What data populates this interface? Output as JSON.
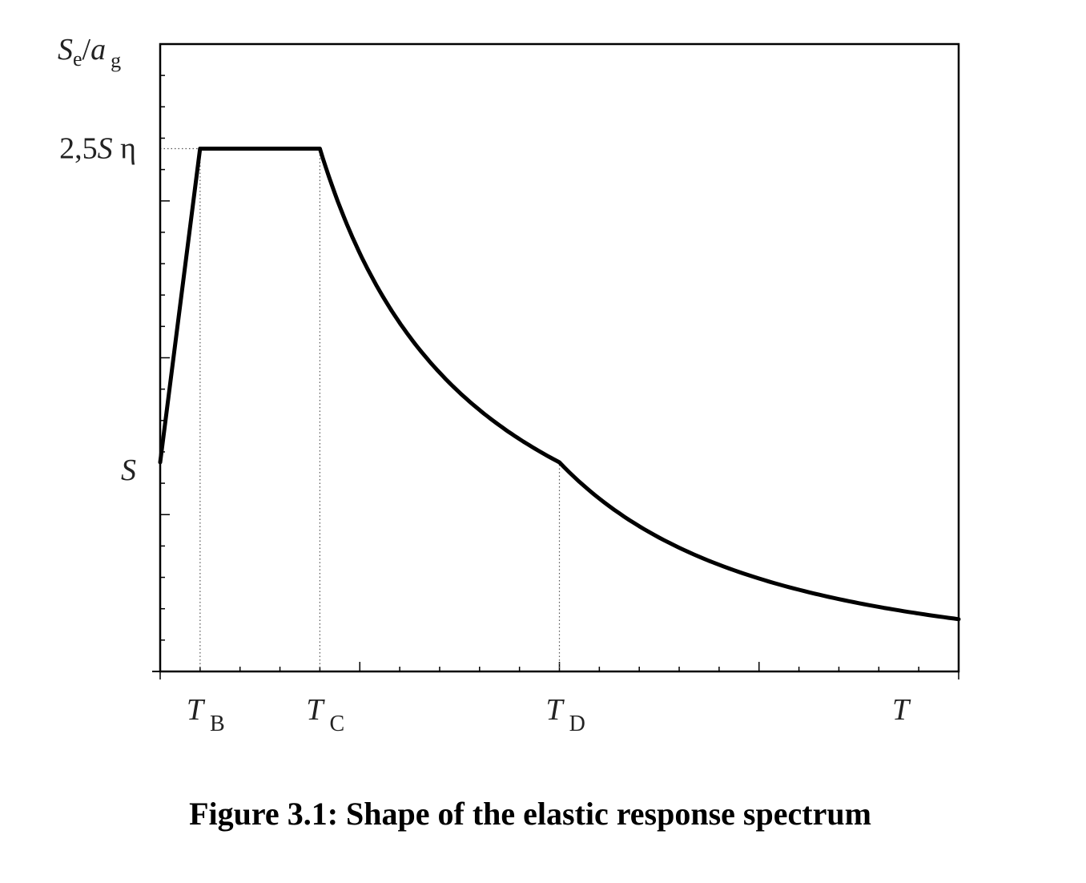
{
  "caption": "Figure 3.1: Shape of the elastic response spectrum",
  "chart_data": {
    "type": "line",
    "title": "",
    "xlabel": "T",
    "ylabel": {
      "main": "S",
      "sub1": "e",
      "sep": "/",
      "main2": "a",
      "sub2": "g"
    },
    "y_markers": [
      {
        "value": 1.0,
        "parts": [
          {
            "text": "S",
            "italic": true
          }
        ]
      },
      {
        "value": 2.5,
        "parts": [
          {
            "text": "2,5",
            "italic": false
          },
          {
            "text": "S",
            "italic": true
          },
          {
            "text": " η",
            "italic": false
          }
        ]
      }
    ],
    "x_markers": [
      {
        "value": 0.1,
        "main": "T",
        "sub": "B"
      },
      {
        "value": 0.4,
        "main": "T",
        "sub": "C"
      },
      {
        "value": 1.0,
        "main": "T",
        "sub": "D"
      }
    ],
    "xlim": [
      0,
      2.0
    ],
    "ylim": [
      0,
      3.0
    ],
    "grid": false,
    "series": [
      {
        "segments": [
          {
            "kind": "linear",
            "from": [
              0,
              1.0
            ],
            "to": [
              0.1,
              2.5
            ]
          },
          {
            "kind": "constant",
            "from": [
              0.1,
              2.5
            ],
            "to": [
              0.4,
              2.5
            ]
          },
          {
            "kind": "reciprocal",
            "from": 0.4,
            "to": 1.0,
            "coef": 1.0
          },
          {
            "kind": "reciprocal_square",
            "from": 1.0,
            "to": 2.0,
            "coef": 1.0
          }
        ]
      }
    ]
  }
}
